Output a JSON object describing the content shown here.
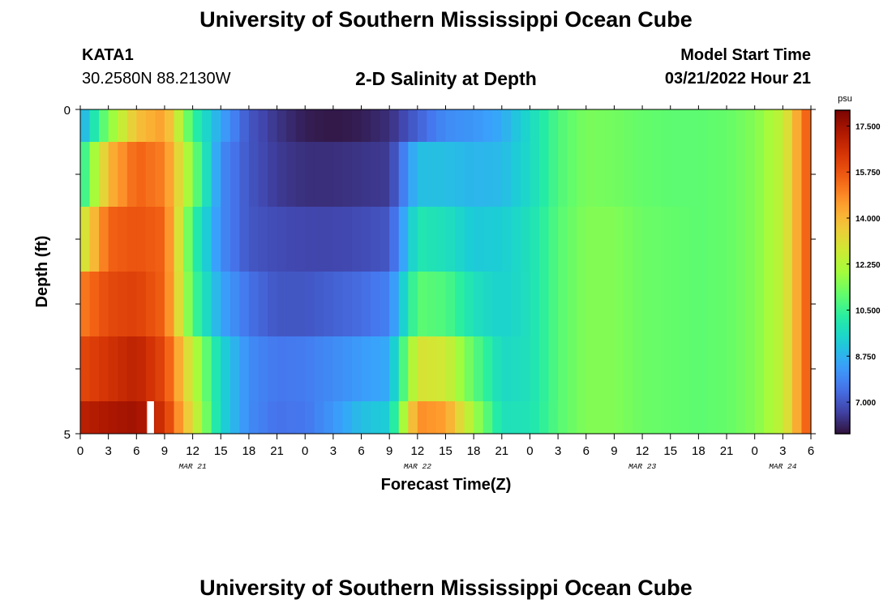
{
  "header": {
    "title": "University of Southern Mississippi Ocean Cube",
    "station": "KATA1",
    "coords": "30.2580N  88.2130W",
    "plot_title": "2-D Salinity at Depth",
    "start_label": "Model Start Time",
    "start_value": "03/21/2022 Hour 21"
  },
  "footer": {
    "title": "University of Southern Mississippi Ocean Cube"
  },
  "chart_data": {
    "type": "heatmap",
    "title": "2-D Salinity at Depth",
    "xlabel": "Forecast Time(Z)",
    "ylabel": "Depth (ft)",
    "colorbar_unit": "psu",
    "colorbar_ticks": [
      "7.000",
      "8.750",
      "10.500",
      "12.250",
      "14.000",
      "15.750",
      "17.500"
    ],
    "colorbar_tick_values": [
      7.0,
      8.75,
      10.5,
      12.25,
      14.0,
      15.75,
      17.5
    ],
    "vmin": 5.8,
    "vmax": 18.1,
    "y_ticks": [
      "0",
      "5"
    ],
    "ylim": [
      0,
      5
    ],
    "x_hours_range": [
      0,
      78
    ],
    "x_tick_labels": [
      "0",
      "3",
      "6",
      "9",
      "12",
      "15",
      "18",
      "21",
      "0",
      "3",
      "6",
      "9",
      "12",
      "15",
      "18",
      "21",
      "0",
      "3",
      "6",
      "9",
      "12",
      "15",
      "18",
      "21",
      "0",
      "3",
      "6"
    ],
    "date_labels": [
      {
        "text": "MAR 21",
        "hour": 12
      },
      {
        "text": "MAR 22",
        "hour": 36
      },
      {
        "text": "MAR 23",
        "hour": 60
      },
      {
        "text": "MAR 24",
        "hour": 75
      }
    ],
    "layers": [
      {
        "depth_range": [
          0,
          0.5
        ],
        "profile": [
          [
            0,
            8.5
          ],
          [
            3,
            11.5
          ],
          [
            6,
            13.8
          ],
          [
            9,
            14.5
          ],
          [
            12,
            10.5
          ],
          [
            15,
            8.5
          ],
          [
            18,
            7.0
          ],
          [
            21,
            6.4
          ],
          [
            24,
            6.0
          ],
          [
            27,
            5.9
          ],
          [
            30,
            6.0
          ],
          [
            33,
            6.3
          ],
          [
            36,
            7.2
          ],
          [
            39,
            8.0
          ],
          [
            42,
            8.2
          ],
          [
            45,
            8.6
          ],
          [
            48,
            9.6
          ],
          [
            51,
            10.8
          ],
          [
            54,
            11.4
          ],
          [
            57,
            11.3
          ],
          [
            60,
            11.1
          ],
          [
            63,
            11.0
          ],
          [
            66,
            11.0
          ],
          [
            69,
            11.1
          ],
          [
            72,
            11.5
          ],
          [
            75,
            12.5
          ],
          [
            78,
            16.0
          ]
        ]
      },
      {
        "depth_range": [
          0.5,
          1.5
        ],
        "profile": [
          [
            0,
            10.0
          ],
          [
            3,
            14.0
          ],
          [
            6,
            15.5
          ],
          [
            9,
            15.0
          ],
          [
            12,
            11.5
          ],
          [
            15,
            8.0
          ],
          [
            18,
            7.0
          ],
          [
            21,
            6.5
          ],
          [
            24,
            6.3
          ],
          [
            27,
            6.3
          ],
          [
            30,
            6.4
          ],
          [
            33,
            6.5
          ],
          [
            36,
            9.0
          ],
          [
            39,
            9.0
          ],
          [
            42,
            8.8
          ],
          [
            45,
            8.9
          ],
          [
            48,
            9.6
          ],
          [
            51,
            10.8
          ],
          [
            54,
            11.4
          ],
          [
            57,
            11.3
          ],
          [
            60,
            11.1
          ],
          [
            63,
            11.0
          ],
          [
            66,
            11.0
          ],
          [
            69,
            11.1
          ],
          [
            72,
            11.5
          ],
          [
            75,
            12.5
          ],
          [
            78,
            16.0
          ]
        ]
      },
      {
        "depth_range": [
          1.5,
          2.5
        ],
        "profile": [
          [
            0,
            12.5
          ],
          [
            3,
            15.5
          ],
          [
            6,
            15.8
          ],
          [
            9,
            15.5
          ],
          [
            12,
            10.5
          ],
          [
            15,
            8.0
          ],
          [
            18,
            7.0
          ],
          [
            21,
            6.8
          ],
          [
            24,
            6.7
          ],
          [
            27,
            6.7
          ],
          [
            30,
            6.8
          ],
          [
            33,
            7.0
          ],
          [
            36,
            10.0
          ],
          [
            39,
            9.8
          ],
          [
            42,
            9.2
          ],
          [
            45,
            9.3
          ],
          [
            48,
            9.8
          ],
          [
            51,
            10.9
          ],
          [
            54,
            11.5
          ],
          [
            57,
            11.5
          ],
          [
            60,
            11.2
          ],
          [
            63,
            11.1
          ],
          [
            66,
            11.0
          ],
          [
            69,
            11.1
          ],
          [
            72,
            11.5
          ],
          [
            75,
            12.5
          ],
          [
            78,
            16.0
          ]
        ]
      },
      {
        "depth_range": [
          2.5,
          3.5
        ],
        "profile": [
          [
            0,
            15.0
          ],
          [
            3,
            16.0
          ],
          [
            6,
            16.2
          ],
          [
            9,
            15.5
          ],
          [
            12,
            10.8
          ],
          [
            15,
            8.5
          ],
          [
            18,
            7.5
          ],
          [
            21,
            7.0
          ],
          [
            24,
            7.0
          ],
          [
            27,
            7.2
          ],
          [
            30,
            7.4
          ],
          [
            33,
            7.8
          ],
          [
            36,
            11.0
          ],
          [
            39,
            10.8
          ],
          [
            42,
            9.8
          ],
          [
            45,
            9.4
          ],
          [
            48,
            9.8
          ],
          [
            51,
            10.9
          ],
          [
            54,
            11.5
          ],
          [
            57,
            11.5
          ],
          [
            60,
            11.2
          ],
          [
            63,
            11.1
          ],
          [
            66,
            11.0
          ],
          [
            69,
            11.1
          ],
          [
            72,
            11.5
          ],
          [
            75,
            12.5
          ],
          [
            78,
            16.0
          ]
        ]
      },
      {
        "depth_range": [
          3.5,
          4.5
        ],
        "profile": [
          [
            0,
            16.0
          ],
          [
            3,
            16.5
          ],
          [
            6,
            17.0
          ],
          [
            9,
            16.0
          ],
          [
            12,
            12.5
          ],
          [
            15,
            9.5
          ],
          [
            18,
            8.0
          ],
          [
            21,
            7.6
          ],
          [
            24,
            7.7
          ],
          [
            27,
            8.0
          ],
          [
            30,
            8.3
          ],
          [
            33,
            8.6
          ],
          [
            36,
            13.0
          ],
          [
            39,
            12.8
          ],
          [
            42,
            11.0
          ],
          [
            45,
            9.6
          ],
          [
            48,
            9.8
          ],
          [
            51,
            10.9
          ],
          [
            54,
            11.5
          ],
          [
            57,
            11.5
          ],
          [
            60,
            11.2
          ],
          [
            63,
            11.1
          ],
          [
            66,
            11.0
          ],
          [
            69,
            11.1
          ],
          [
            72,
            11.5
          ],
          [
            75,
            12.5
          ],
          [
            78,
            16.0
          ]
        ]
      },
      {
        "depth_range": [
          4.5,
          5.0
        ],
        "profile": [
          [
            0,
            17.0
          ],
          [
            3,
            17.3
          ],
          [
            6,
            17.5
          ],
          [
            9,
            16.5
          ],
          [
            12,
            13.0
          ],
          [
            15,
            9.5
          ],
          [
            18,
            8.0
          ],
          [
            21,
            7.5
          ],
          [
            24,
            7.6
          ],
          [
            27,
            8.2
          ],
          [
            30,
            9.0
          ],
          [
            33,
            9.3
          ],
          [
            36,
            14.8
          ],
          [
            39,
            14.5
          ],
          [
            42,
            12.0
          ],
          [
            45,
            9.8
          ],
          [
            48,
            9.9
          ],
          [
            51,
            10.9
          ],
          [
            54,
            11.5
          ],
          [
            57,
            11.5
          ],
          [
            60,
            11.2
          ],
          [
            63,
            11.1
          ],
          [
            66,
            11.0
          ],
          [
            69,
            11.1
          ],
          [
            72,
            11.5
          ],
          [
            75,
            12.5
          ],
          [
            78,
            16.0
          ]
        ]
      }
    ],
    "missing_cells": [
      {
        "hour": 7,
        "depth_range": [
          4.5,
          5.0
        ]
      }
    ]
  },
  "colors": {
    "colormap": [
      "#30123b",
      "#4145ab",
      "#4675ed",
      "#39a2fc",
      "#1bcfd4",
      "#24eca6",
      "#61fc6c",
      "#a4fc3b",
      "#d1e834",
      "#f3c63a",
      "#fe9b2d",
      "#f36315",
      "#d93806",
      "#b11901",
      "#7a0403"
    ]
  }
}
